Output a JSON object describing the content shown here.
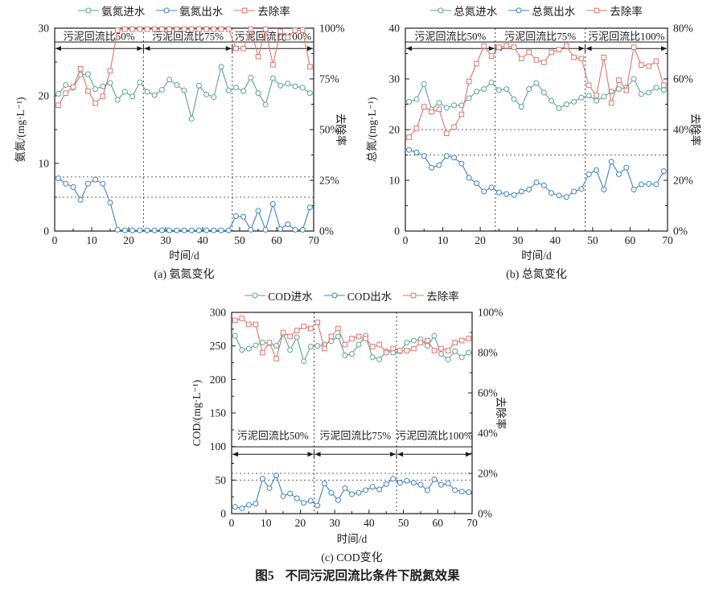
{
  "figure": {
    "label": "图5",
    "title": "不同污泥回流比条件下脱氮效果"
  },
  "colors": {
    "influent": "#5aa396",
    "effluent": "#3c83c2",
    "removal": "#e0756b",
    "axis": "#1a1a1a"
  },
  "chart_data": [
    {
      "id": "a",
      "type": "line",
      "caption": "(a) 氨氮变化",
      "xlabel": "时间/d",
      "ylabel_left": "氨氮/(mg·L⁻¹)",
      "ylabel_right": "去除率",
      "xlim": [
        0,
        70
      ],
      "x_ticks": [
        0,
        10,
        20,
        30,
        40,
        50,
        60,
        70
      ],
      "x_minor_step": 5,
      "ylim_left": [
        0,
        30
      ],
      "left_ticks": [
        0,
        10,
        20,
        30
      ],
      "left_minor_step": 5,
      "ylim_right": [
        0,
        100
      ],
      "right_tick_values": [
        0,
        25,
        50,
        75,
        100
      ],
      "right_tick_labels": [
        "0%",
        "25%",
        "50%",
        "75%",
        "100%"
      ],
      "right_minor_step": 12.5,
      "guides_h_left": [
        8,
        5
      ],
      "guides_v_x": [
        24,
        48
      ],
      "annotation": {
        "labels": [
          "污泥回流比50%",
          "污泥回流比75%",
          "污泥回流比100%"
        ],
        "boundaries": [
          0,
          24,
          48,
          70
        ]
      },
      "x": [
        1,
        3,
        5,
        7,
        9,
        11,
        13,
        15,
        17,
        19,
        21,
        23,
        25,
        27,
        29,
        31,
        33,
        35,
        37,
        39,
        41,
        43,
        45,
        47,
        49,
        51,
        53,
        55,
        57,
        59,
        61,
        63,
        65,
        67,
        69
      ],
      "series": [
        {
          "key": "influent",
          "name": "氨氮进水",
          "axis": "left",
          "marker": "circle",
          "color": "#5aa396",
          "values": [
            20.3,
            21.6,
            21.2,
            23.1,
            23.2,
            21.0,
            21.4,
            21.9,
            19.4,
            20.6,
            19.9,
            22.0,
            20.6,
            20.1,
            20.9,
            22.4,
            21.6,
            20.8,
            16.6,
            21.5,
            20.2,
            19.8,
            24.3,
            20.8,
            21.2,
            20.7,
            22.7,
            20.4,
            18.7,
            22.6,
            21.5,
            21.8,
            21.4,
            21.2,
            20.4
          ]
        },
        {
          "key": "effluent",
          "name": "氨氮出水",
          "axis": "left",
          "marker": "circle",
          "color": "#3c83c2",
          "values": [
            7.8,
            7.0,
            6.5,
            4.6,
            7.0,
            7.6,
            7.0,
            4.2,
            0.2,
            0.1,
            0.1,
            0.1,
            0.1,
            0.1,
            0.1,
            0.1,
            0.1,
            0.1,
            0.1,
            0.1,
            0.1,
            0.1,
            0.1,
            0.1,
            2.2,
            2.1,
            0.2,
            3.0,
            0.2,
            4.0,
            0.3,
            1.0,
            0.2,
            0.2,
            3.5
          ]
        },
        {
          "key": "removal",
          "name": "去除率",
          "axis": "right",
          "marker": "square",
          "color": "#e0756b",
          "values": [
            62,
            68,
            71,
            80,
            69,
            63,
            66.5,
            79,
            99,
            99.5,
            99.5,
            99.5,
            99.5,
            99.5,
            99.5,
            99.5,
            99.5,
            99.5,
            99.5,
            99.5,
            99.5,
            99.5,
            99.5,
            99.5,
            90,
            90,
            99.5,
            86,
            99.5,
            82,
            98.5,
            95.5,
            99,
            99,
            81
          ]
        }
      ]
    },
    {
      "id": "b",
      "type": "line",
      "caption": "(b) 总氮变化",
      "xlabel": "时间/d",
      "ylabel_left": "总氮/(mg·L⁻¹)",
      "ylabel_right": "去除率",
      "xlim": [
        0,
        70
      ],
      "x_ticks": [
        0,
        10,
        20,
        30,
        40,
        50,
        60,
        70
      ],
      "x_minor_step": 5,
      "ylim_left": [
        0,
        40
      ],
      "left_ticks": [
        0,
        10,
        20,
        30,
        40
      ],
      "left_minor_step": 5,
      "ylim_right": [
        0,
        80
      ],
      "right_tick_values": [
        0,
        20,
        40,
        60,
        80
      ],
      "right_tick_labels": [
        "0%",
        "20%",
        "40%",
        "60%",
        "80%"
      ],
      "right_minor_step": 10,
      "guides_h_left": [
        20,
        15
      ],
      "guides_v_x": [
        24,
        48
      ],
      "annotation": {
        "labels": [
          "污泥回流比50%",
          "污泥回流比75%",
          "污泥回流比100%"
        ],
        "boundaries": [
          0,
          24,
          48,
          70
        ]
      },
      "x": [
        1,
        3,
        5,
        7,
        9,
        11,
        13,
        15,
        17,
        19,
        21,
        23,
        25,
        27,
        29,
        31,
        33,
        35,
        37,
        39,
        41,
        43,
        45,
        47,
        49,
        51,
        53,
        55,
        57,
        59,
        61,
        63,
        65,
        67,
        69
      ],
      "series": [
        {
          "key": "influent",
          "name": "总氮进水",
          "axis": "left",
          "marker": "circle",
          "color": "#5aa396",
          "values": [
            25.5,
            26.0,
            29.0,
            24.0,
            25.3,
            24.3,
            24.8,
            24.8,
            26.2,
            27.5,
            28.0,
            29.3,
            27.8,
            28.0,
            26.0,
            24.5,
            28.0,
            29.2,
            27.3,
            25.7,
            24.2,
            25.0,
            25.5,
            26.3,
            26.7,
            25.7,
            26.5,
            27.5,
            28.0,
            28.3,
            30.0,
            27.0,
            27.3,
            28.3,
            27.8
          ]
        },
        {
          "key": "effluent",
          "name": "总氮出水",
          "axis": "left",
          "marker": "circle",
          "color": "#3c83c2",
          "values": [
            16.0,
            15.5,
            14.8,
            12.5,
            13.0,
            14.8,
            14.5,
            13.3,
            10.5,
            9.4,
            7.8,
            8.6,
            7.6,
            7.3,
            7.1,
            7.8,
            8.2,
            9.6,
            9.0,
            7.5,
            7.0,
            6.7,
            7.8,
            8.3,
            11.2,
            12.0,
            8.2,
            13.7,
            11.2,
            12.5,
            8.2,
            9.2,
            9.3,
            9.2,
            11.8
          ]
        },
        {
          "key": "removal",
          "name": "去除率",
          "axis": "right",
          "marker": "square",
          "color": "#e0756b",
          "values": [
            37,
            40.5,
            49,
            47,
            48,
            38.5,
            41,
            46,
            59,
            66,
            73,
            69,
            72.5,
            73,
            72.5,
            68,
            70.5,
            67.5,
            66.5,
            70.5,
            71.5,
            73,
            68.5,
            68,
            57.5,
            53.5,
            68.5,
            50.5,
            59.5,
            55.5,
            72.5,
            65.5,
            65,
            67,
            57.5
          ]
        }
      ]
    },
    {
      "id": "c",
      "type": "line",
      "caption": "(c) COD变化",
      "xlabel": "时间/d",
      "ylabel_left": "COD/(mg·L⁻¹)",
      "ylabel_right": "去除率",
      "xlim": [
        0,
        70
      ],
      "x_ticks": [
        0,
        10,
        20,
        30,
        40,
        50,
        60,
        70
      ],
      "x_minor_step": 5,
      "ylim_left": [
        0,
        300
      ],
      "left_ticks": [
        0,
        50,
        100,
        150,
        200,
        250,
        300
      ],
      "left_minor_step": 25,
      "ylim_right": [
        0,
        100
      ],
      "right_tick_values": [
        0,
        20,
        40,
        60,
        80,
        100
      ],
      "right_tick_labels": [
        "0%",
        "20%",
        "40%",
        "60%",
        "80%",
        "100%"
      ],
      "right_minor_step": 10,
      "guides_h_left": [
        60,
        50
      ],
      "guides_v_x": [
        24,
        48
      ],
      "annotation": {
        "labels": [
          "污泥回流比50%",
          "污泥回流比75%",
          "污泥回流比100%"
        ],
        "boundaries": [
          0,
          24,
          48,
          70
        ]
      },
      "x": [
        1,
        3,
        5,
        7,
        9,
        11,
        13,
        15,
        17,
        19,
        21,
        23,
        25,
        27,
        29,
        31,
        33,
        35,
        37,
        39,
        41,
        43,
        45,
        47,
        49,
        51,
        53,
        55,
        57,
        59,
        61,
        63,
        65,
        67,
        69
      ],
      "series": [
        {
          "key": "influent",
          "name": "COD进水",
          "axis": "left",
          "marker": "circle",
          "color": "#5aa396",
          "values": [
            265,
            244,
            246,
            251,
            255,
            254,
            250,
            268,
            244,
            263,
            227,
            249,
            250,
            252,
            257,
            264,
            236,
            238,
            252,
            265,
            233,
            230,
            242,
            240,
            242,
            255,
            258,
            260,
            250,
            265,
            238,
            230,
            242,
            233,
            240
          ]
        },
        {
          "key": "effluent",
          "name": "COD出水",
          "axis": "left",
          "marker": "circle",
          "color": "#3c83c2",
          "values": [
            10,
            8,
            13,
            15,
            52,
            38,
            57,
            26,
            30,
            23,
            16,
            19,
            12,
            45,
            31,
            20,
            38,
            29,
            31,
            35,
            40,
            36,
            44,
            52,
            46,
            49,
            46,
            43,
            35,
            51,
            43,
            45,
            35,
            33,
            32
          ]
        },
        {
          "key": "removal",
          "name": "去除率",
          "axis": "right",
          "marker": "square",
          "color": "#e0756b",
          "values": [
            96,
            97,
            94,
            94,
            80,
            85,
            77,
            90,
            88,
            91,
            93,
            92,
            95,
            82,
            88,
            92,
            84,
            87,
            88,
            87,
            83,
            84,
            80,
            82,
            81,
            81,
            82,
            85,
            86,
            81,
            82,
            81,
            85,
            86,
            87
          ]
        }
      ]
    }
  ]
}
